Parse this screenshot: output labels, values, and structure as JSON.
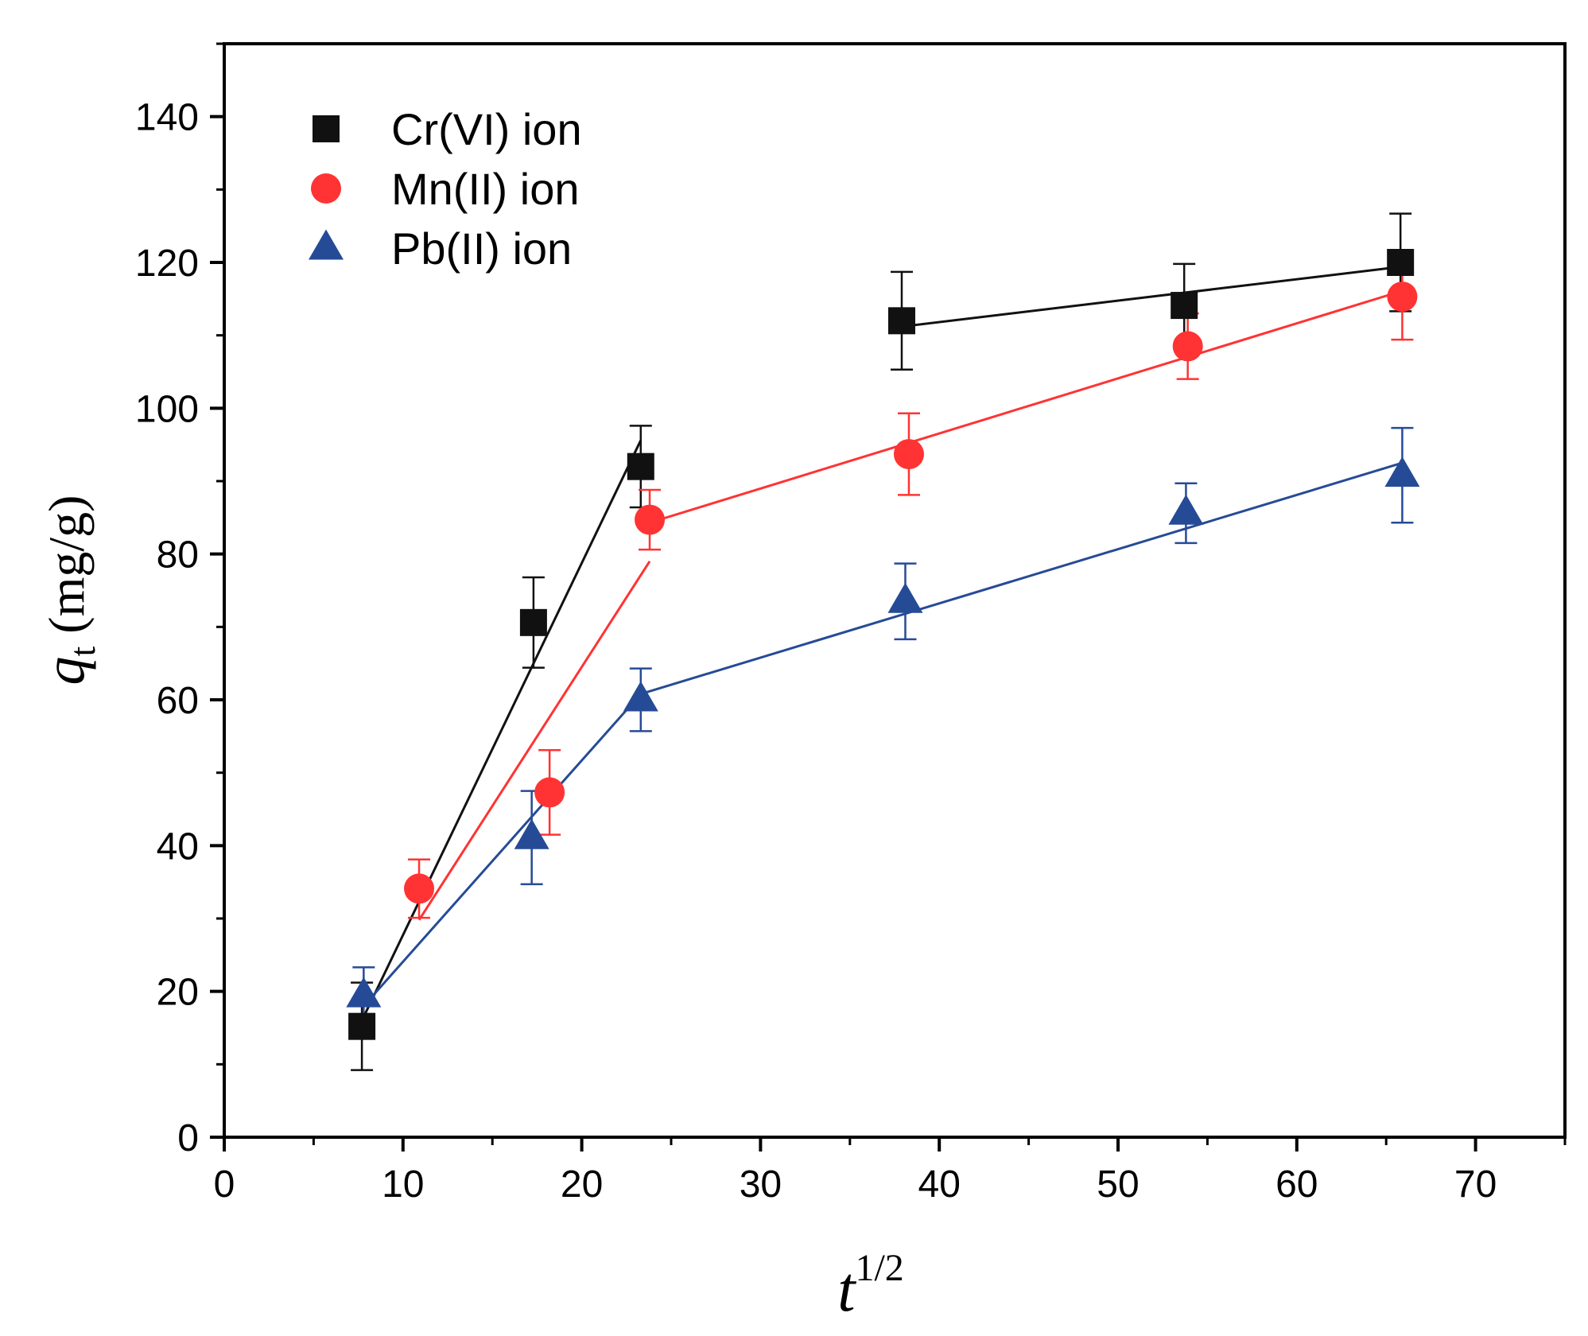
{
  "chart_data": {
    "type": "scatter",
    "title": "",
    "xlabel": {
      "base": "t",
      "superscript": "1/2"
    },
    "ylabel": {
      "italic": "q",
      "subscript": "t",
      "unit": " (mg/g)"
    },
    "xlim": [
      0,
      75
    ],
    "ylim": [
      0,
      150
    ],
    "xticks": [
      0,
      10,
      20,
      30,
      40,
      50,
      60,
      70
    ],
    "yticks": [
      0,
      20,
      40,
      60,
      80,
      100,
      120,
      140
    ],
    "x_minor_step": 5,
    "y_minor_step": 10,
    "grid": false,
    "legend_position": "top-left",
    "series": [
      {
        "name": "Cr(VI) ion",
        "marker": "square",
        "color": "#111111",
        "points": [
          {
            "x": 7.7,
            "y": 15.2,
            "err": 6.0
          },
          {
            "x": 17.3,
            "y": 70.6,
            "err": 6.2
          },
          {
            "x": 23.3,
            "y": 92.0,
            "err": 5.6
          },
          {
            "x": 37.9,
            "y": 112.0,
            "err": 6.7
          },
          {
            "x": 53.7,
            "y": 114.1,
            "err": 5.7
          },
          {
            "x": 65.8,
            "y": 120.0,
            "err": 6.7
          }
        ],
        "fit_lines": [
          {
            "x": [
              7.7,
              23.3
            ],
            "y": [
              16.0,
              95.6
            ]
          },
          {
            "x": [
              37.9,
              65.8
            ],
            "y": [
              111.2,
              119.4
            ]
          }
        ]
      },
      {
        "name": "Mn(II) ion",
        "marker": "circle",
        "color": "#ff3333",
        "points": [
          {
            "x": 10.9,
            "y": 34.1,
            "err": 4.0
          },
          {
            "x": 18.2,
            "y": 47.3,
            "err": 5.8
          },
          {
            "x": 23.8,
            "y": 84.7,
            "err": 4.1
          },
          {
            "x": 38.3,
            "y": 93.7,
            "err": 5.6
          },
          {
            "x": 53.9,
            "y": 108.5,
            "err": 4.5
          },
          {
            "x": 65.9,
            "y": 115.3,
            "err": 5.9
          }
        ],
        "fit_lines": [
          {
            "x": [
              10.9,
              23.8
            ],
            "y": [
              29.8,
              79.0
            ]
          },
          {
            "x": [
              23.8,
              65.9
            ],
            "y": [
              84.3,
              116.1
            ]
          }
        ]
      },
      {
        "name": "Pb(II) ion",
        "marker": "triangle",
        "color": "#264b96",
        "points": [
          {
            "x": 7.8,
            "y": 19.4,
            "err": 3.9
          },
          {
            "x": 17.2,
            "y": 41.1,
            "err": 6.4
          },
          {
            "x": 23.3,
            "y": 60.0,
            "err": 4.3
          },
          {
            "x": 38.1,
            "y": 73.5,
            "err": 5.2
          },
          {
            "x": 53.8,
            "y": 85.6,
            "err": 4.1
          },
          {
            "x": 65.9,
            "y": 90.8,
            "err": 6.5
          }
        ],
        "fit_lines": [
          {
            "x": [
              7.8,
              23.3
            ],
            "y": [
              18.0,
              60.8
            ]
          },
          {
            "x": [
              23.3,
              65.9
            ],
            "y": [
              60.8,
              92.5
            ]
          }
        ]
      }
    ]
  }
}
